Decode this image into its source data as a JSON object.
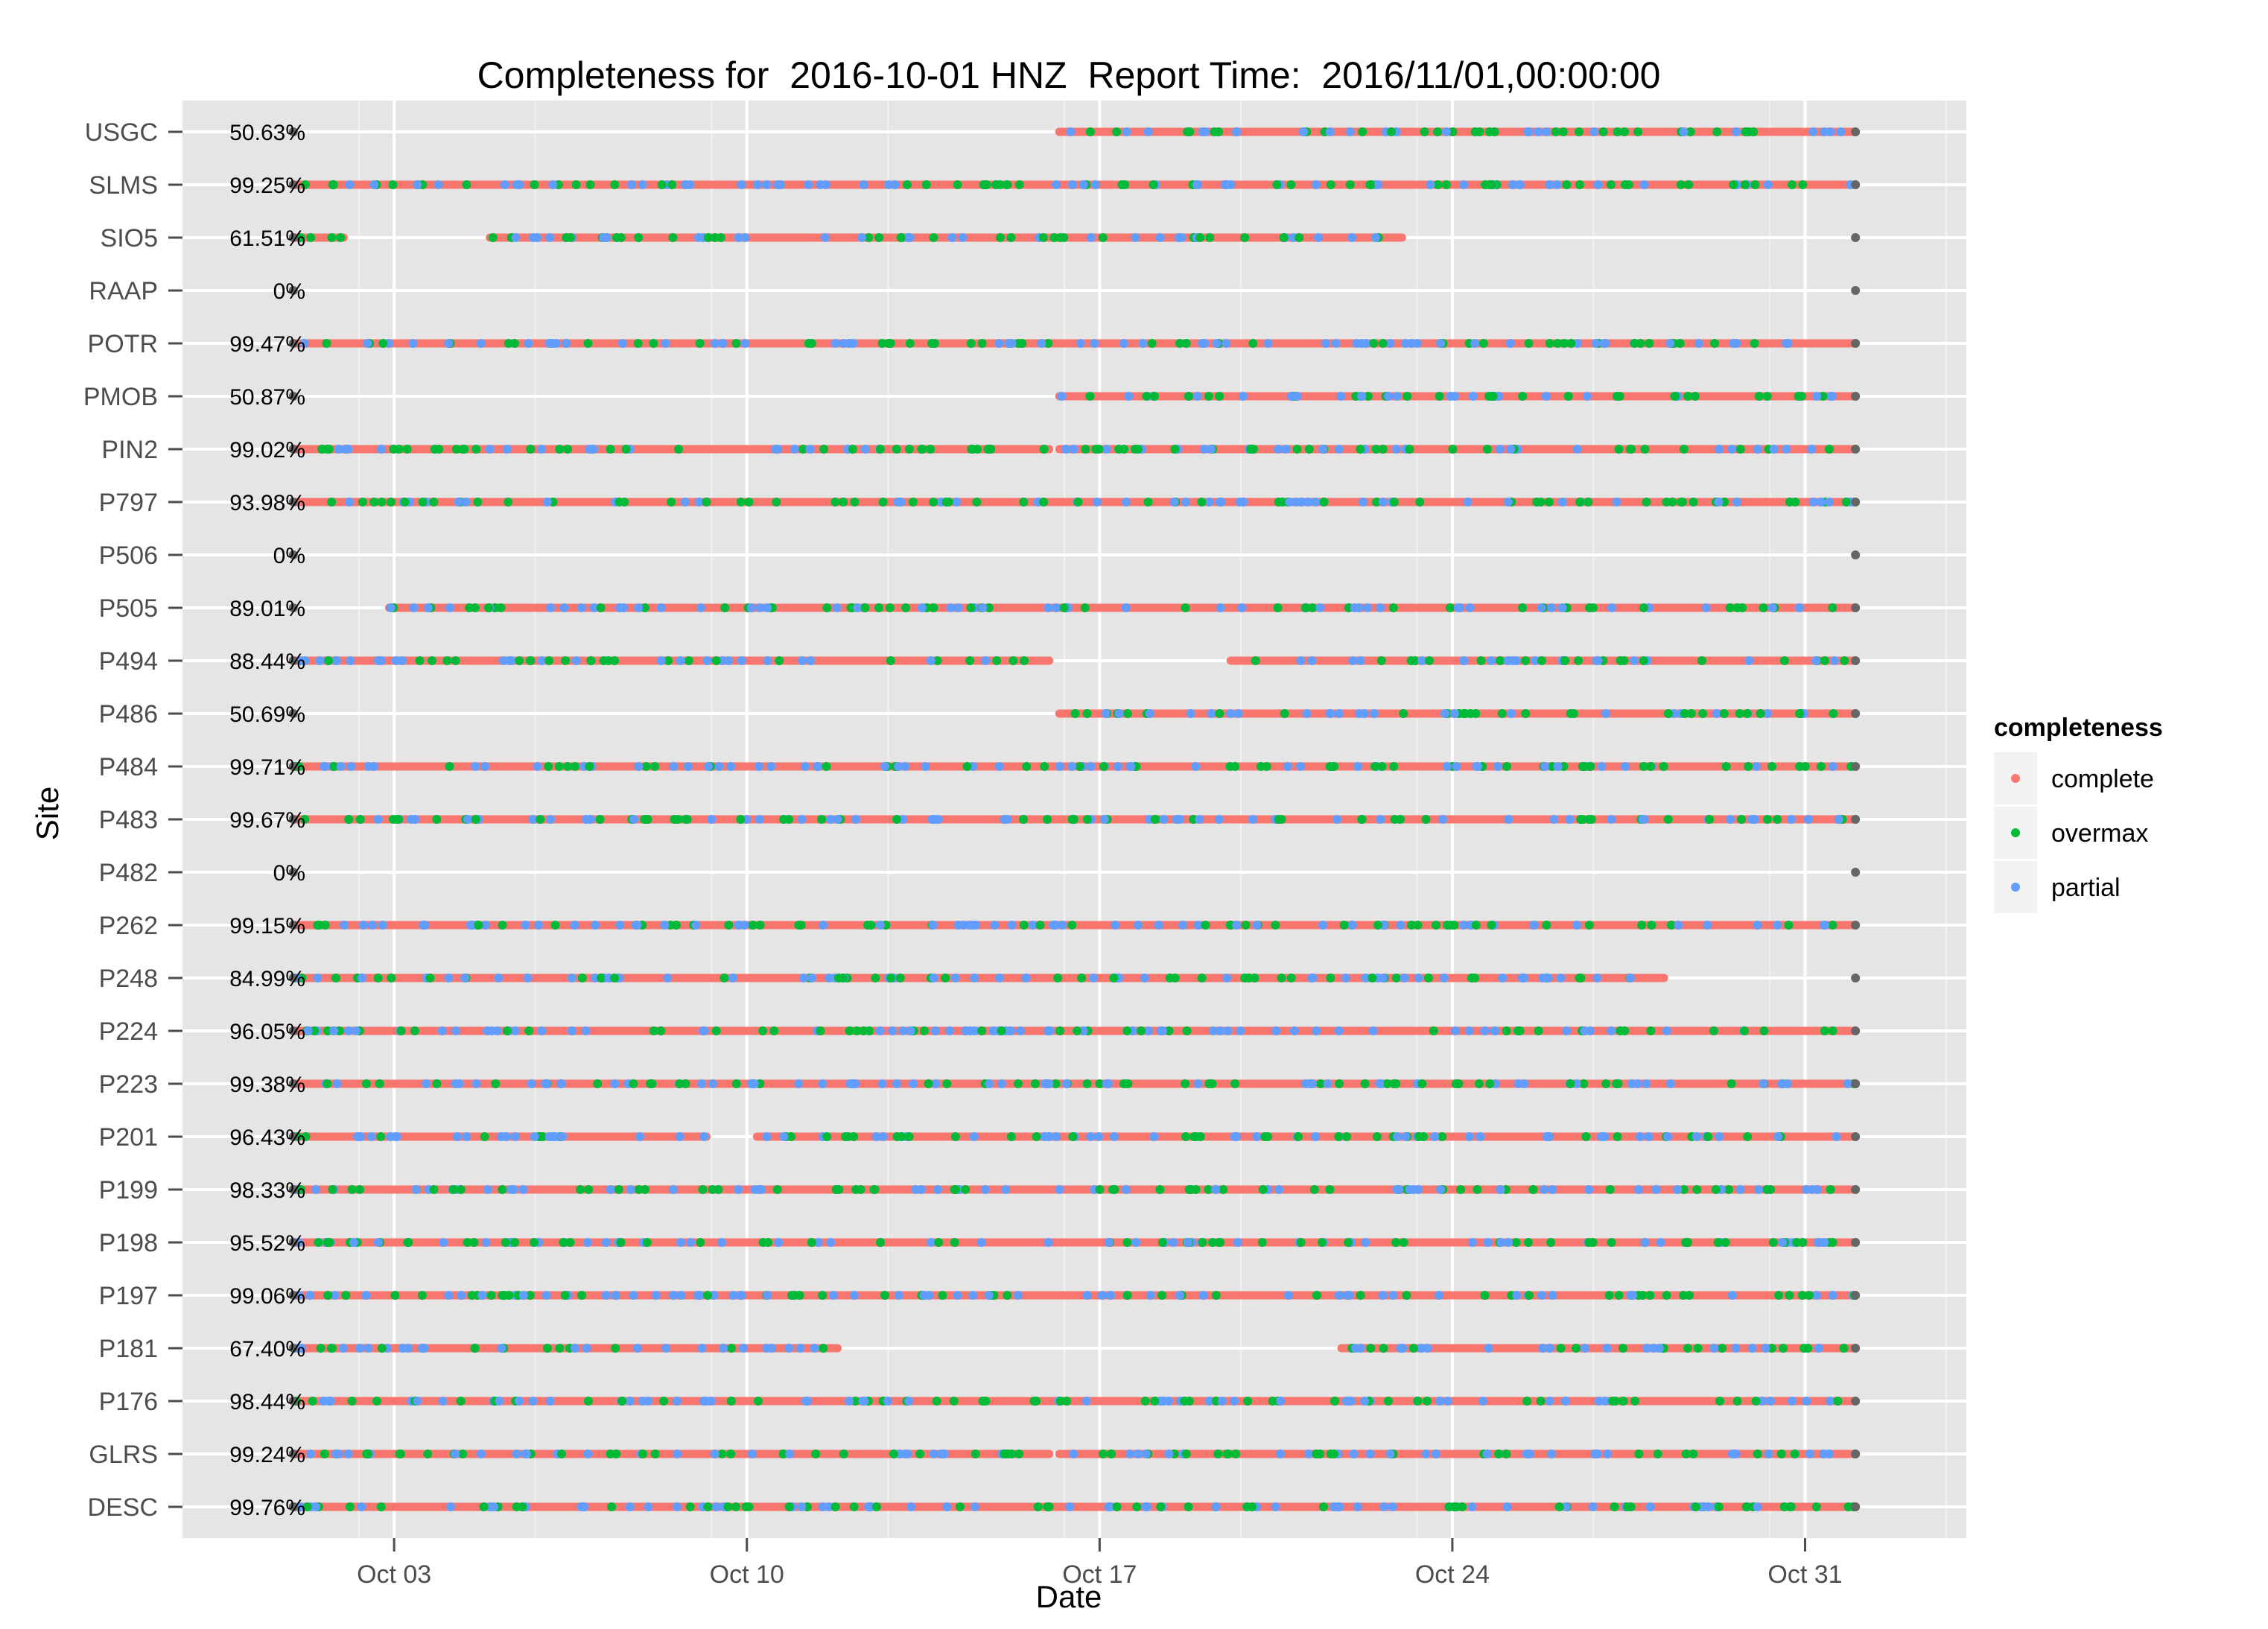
{
  "chart_data": {
    "type": "scatter",
    "title": "Completeness for  2016-10-01 HNZ  Report Time:  2016/11/01,00:00:00",
    "xlabel": "Date",
    "ylabel": "Site",
    "x_ticks": [
      "Oct 03",
      "Oct 10",
      "Oct 17",
      "Oct 24",
      "Oct 31"
    ],
    "x_tick_values": [
      3,
      10,
      17,
      24,
      31
    ],
    "xlim": [
      -1.2,
      34.2
    ],
    "x_start": 1,
    "x_end": 32,
    "legend": {
      "title": "completeness",
      "position": "right",
      "entries": [
        {
          "label": "complete",
          "color": "#F8766D"
        },
        {
          "label": "overmax",
          "color": "#00BA38"
        },
        {
          "label": "partial",
          "color": "#619CFF"
        }
      ]
    },
    "endpoint_color": "#666666",
    "grid": true,
    "sites": [
      {
        "site": "USGC",
        "percent": "50.63%",
        "segments": [
          [
            16.2,
            32
          ]
        ]
      },
      {
        "site": "SLMS",
        "percent": "99.25%",
        "segments": [
          [
            1,
            32
          ]
        ]
      },
      {
        "site": "SIO5",
        "percent": "61.51%",
        "segments": [
          [
            1,
            2
          ],
          [
            4.9,
            23
          ]
        ]
      },
      {
        "site": "RAAP",
        "percent": "0%",
        "segments": []
      },
      {
        "site": "POTR",
        "percent": "99.47%",
        "segments": [
          [
            1,
            32
          ]
        ]
      },
      {
        "site": "PMOB",
        "percent": "50.87%",
        "segments": [
          [
            16.2,
            32
          ]
        ]
      },
      {
        "site": "PIN2",
        "percent": "99.02%",
        "segments": [
          [
            1,
            16
          ],
          [
            16.2,
            32
          ]
        ]
      },
      {
        "site": "P797",
        "percent": "93.98%",
        "segments": [
          [
            1,
            32
          ]
        ]
      },
      {
        "site": "P506",
        "percent": "0%",
        "segments": []
      },
      {
        "site": "P505",
        "percent": "89.01%",
        "segments": [
          [
            2.9,
            32
          ]
        ]
      },
      {
        "site": "P494",
        "percent": "88.44%",
        "segments": [
          [
            1,
            16
          ],
          [
            19.6,
            32
          ]
        ]
      },
      {
        "site": "P486",
        "percent": "50.69%",
        "segments": [
          [
            16.2,
            32
          ]
        ]
      },
      {
        "site": "P484",
        "percent": "99.71%",
        "segments": [
          [
            1,
            32
          ]
        ]
      },
      {
        "site": "P483",
        "percent": "99.67%",
        "segments": [
          [
            1,
            32
          ]
        ]
      },
      {
        "site": "P482",
        "percent": "0%",
        "segments": []
      },
      {
        "site": "P262",
        "percent": "99.15%",
        "segments": [
          [
            1,
            32
          ]
        ]
      },
      {
        "site": "P248",
        "percent": "84.99%",
        "segments": [
          [
            1,
            28.2
          ]
        ]
      },
      {
        "site": "P224",
        "percent": "96.05%",
        "segments": [
          [
            1,
            32
          ]
        ]
      },
      {
        "site": "P223",
        "percent": "99.38%",
        "segments": [
          [
            1,
            32
          ]
        ]
      },
      {
        "site": "P201",
        "percent": "96.43%",
        "segments": [
          [
            1,
            9.2
          ],
          [
            10.2,
            32
          ]
        ]
      },
      {
        "site": "P199",
        "percent": "98.33%",
        "segments": [
          [
            1,
            32
          ]
        ]
      },
      {
        "site": "P198",
        "percent": "95.52%",
        "segments": [
          [
            1,
            32
          ]
        ]
      },
      {
        "site": "P197",
        "percent": "99.06%",
        "segments": [
          [
            1,
            32
          ]
        ]
      },
      {
        "site": "P181",
        "percent": "67.40%",
        "segments": [
          [
            1,
            11.8
          ],
          [
            21.8,
            32
          ]
        ]
      },
      {
        "site": "P176",
        "percent": "98.44%",
        "segments": [
          [
            1,
            32
          ]
        ]
      },
      {
        "site": "GLRS",
        "percent": "99.24%",
        "segments": [
          [
            1,
            16
          ],
          [
            16.2,
            32
          ]
        ]
      },
      {
        "site": "DESC",
        "percent": "99.76%",
        "segments": [
          [
            1,
            32
          ]
        ]
      }
    ]
  }
}
